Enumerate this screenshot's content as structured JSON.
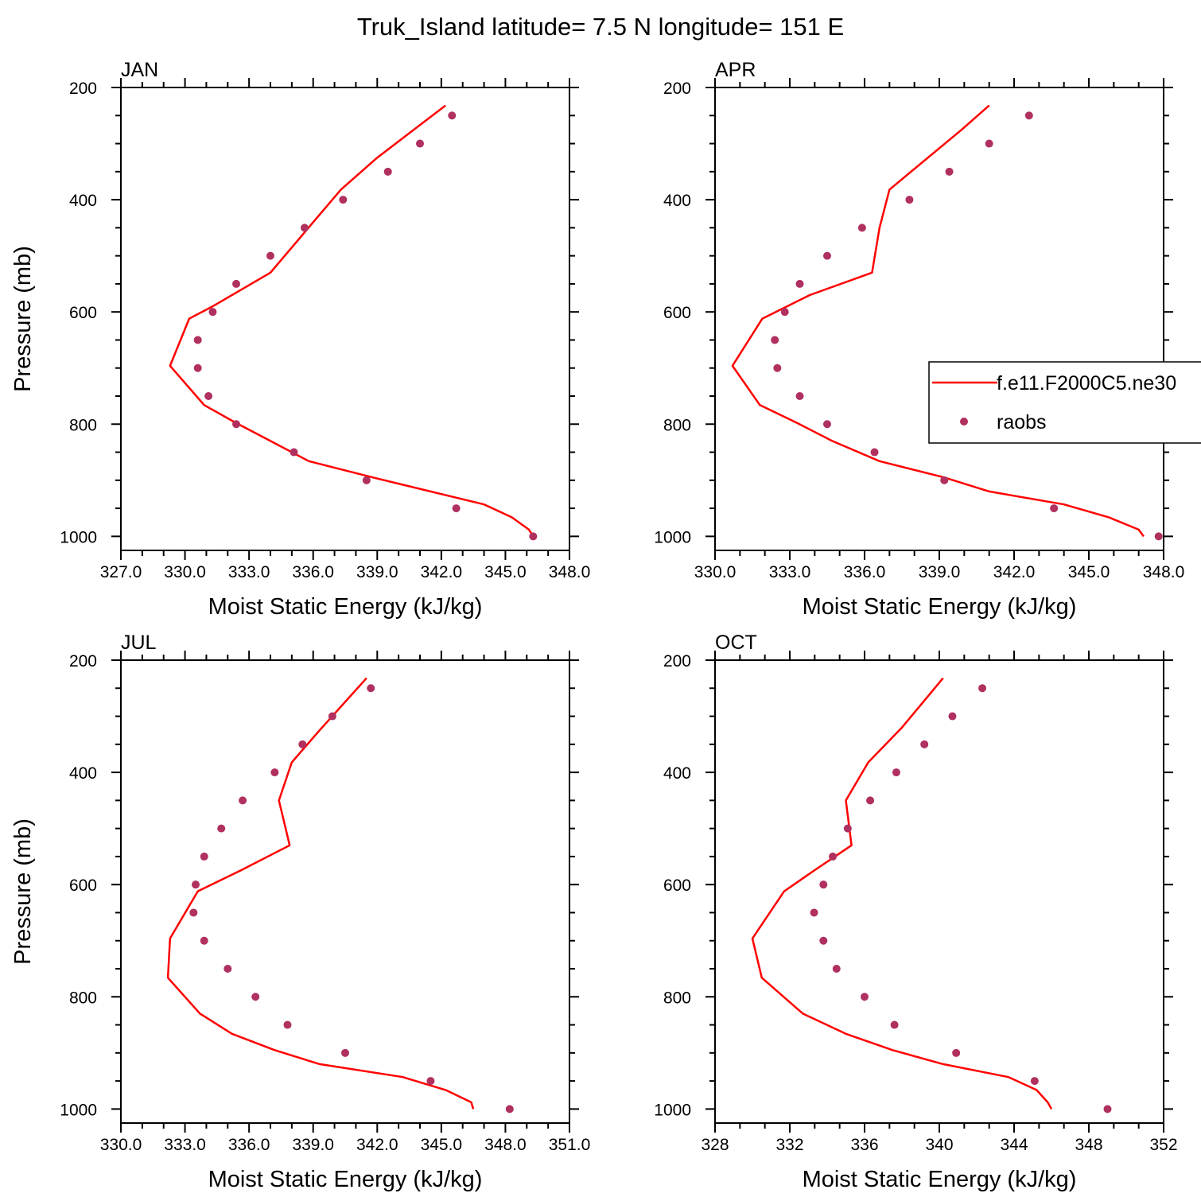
{
  "title": "Truk_Island  latitude= 7.5 N longitude= 151 E",
  "colors": {
    "model_line": "#ff0000",
    "obs_marker": "#b03060",
    "axis": "#000000"
  },
  "legend": {
    "placement": "right, overlapping APR panel",
    "entries": [
      {
        "label": "f.e11.F2000C5.ne30",
        "style": "line"
      },
      {
        "label": "raobs",
        "style": "marker"
      }
    ]
  },
  "chart_data": [
    {
      "type": "line",
      "panel_title": "JAN",
      "xlabel": "Moist Static Energy (kJ/kg)",
      "ylabel": "Pressure (mb)",
      "xlim": [
        327,
        348
      ],
      "ylim": [
        1025,
        200
      ],
      "y_reversed": true,
      "grid": false,
      "xticks": [
        327,
        330,
        333,
        336,
        339,
        342,
        345,
        348
      ],
      "xtick_labels": [
        "327.0",
        "330.0",
        "333.0",
        "336.0",
        "339.0",
        "342.0",
        "345.0",
        "348.0"
      ],
      "yticks": [
        200,
        400,
        600,
        800,
        1000
      ],
      "ytick_labels": [
        "200",
        "400",
        "600",
        "800",
        "1000"
      ],
      "series": [
        {
          "name": "f.e11.F2000C5.ne30",
          "kind": "line",
          "points": [
            [
              342.2,
              232
            ],
            [
              339.0,
              325
            ],
            [
              337.3,
              382
            ],
            [
              334.0,
              530
            ],
            [
              331.3,
              590
            ],
            [
              330.2,
              612
            ],
            [
              329.3,
              696
            ],
            [
              330.9,
              766
            ],
            [
              332.4,
              798
            ],
            [
              334.0,
              830
            ],
            [
              335.8,
              866
            ],
            [
              338.8,
              895
            ],
            [
              344.0,
              943
            ],
            [
              345.3,
              966
            ],
            [
              346.1,
              988
            ],
            [
              346.3,
              1000
            ]
          ]
        },
        {
          "name": "raobs",
          "kind": "scatter",
          "points": [
            [
              342.5,
              250
            ],
            [
              341.0,
              300
            ],
            [
              339.5,
              350
            ],
            [
              337.4,
              400
            ],
            [
              335.6,
              450
            ],
            [
              334.0,
              500
            ],
            [
              332.4,
              550
            ],
            [
              331.3,
              600
            ],
            [
              330.6,
              650
            ],
            [
              330.6,
              700
            ],
            [
              331.1,
              750
            ],
            [
              332.4,
              800
            ],
            [
              335.1,
              850
            ],
            [
              338.5,
              900
            ],
            [
              342.7,
              950
            ],
            [
              346.3,
              1000
            ]
          ]
        }
      ]
    },
    {
      "type": "line",
      "panel_title": "APR",
      "xlabel": "Moist Static Energy (kJ/kg)",
      "ylabel": "",
      "xlim": [
        330,
        348
      ],
      "ylim": [
        1025,
        200
      ],
      "y_reversed": true,
      "grid": false,
      "xticks": [
        330,
        333,
        336,
        339,
        342,
        345,
        348
      ],
      "xtick_labels": [
        "330.0",
        "333.0",
        "336.0",
        "339.0",
        "342.0",
        "345.0",
        "348.0"
      ],
      "yticks": [
        200,
        400,
        600,
        800,
        1000
      ],
      "ytick_labels": [
        "200",
        "400",
        "600",
        "800",
        "1000"
      ],
      "series": [
        {
          "name": "f.e11.F2000C5.ne30",
          "kind": "line",
          "points": [
            [
              341.0,
              232
            ],
            [
              339.9,
              275
            ],
            [
              337.0,
              382
            ],
            [
              336.6,
              450
            ],
            [
              336.3,
              530
            ],
            [
              333.8,
              570
            ],
            [
              331.9,
              612
            ],
            [
              330.7,
              696
            ],
            [
              331.8,
              766
            ],
            [
              333.3,
              798
            ],
            [
              334.7,
              830
            ],
            [
              336.6,
              866
            ],
            [
              339.2,
              895
            ],
            [
              341.0,
              920
            ],
            [
              344.0,
              943
            ],
            [
              345.8,
              966
            ],
            [
              347.0,
              988
            ],
            [
              347.2,
              1000
            ]
          ]
        },
        {
          "name": "raobs",
          "kind": "scatter",
          "points": [
            [
              342.6,
              250
            ],
            [
              341.0,
              300
            ],
            [
              339.4,
              350
            ],
            [
              337.8,
              400
            ],
            [
              335.9,
              450
            ],
            [
              334.5,
              500
            ],
            [
              333.4,
              550
            ],
            [
              332.8,
              600
            ],
            [
              332.4,
              650
            ],
            [
              332.5,
              700
            ],
            [
              333.4,
              750
            ],
            [
              334.5,
              800
            ],
            [
              336.4,
              850
            ],
            [
              339.2,
              900
            ],
            [
              343.6,
              950
            ],
            [
              347.8,
              1000
            ]
          ]
        }
      ]
    },
    {
      "type": "line",
      "panel_title": "JUL",
      "xlabel": "Moist Static Energy (kJ/kg)",
      "ylabel": "Pressure (mb)",
      "xlim": [
        330,
        351
      ],
      "ylim": [
        1025,
        200
      ],
      "y_reversed": true,
      "grid": false,
      "xticks": [
        330,
        333,
        336,
        339,
        342,
        345,
        348,
        351
      ],
      "xtick_labels": [
        "330.0",
        "333.0",
        "336.0",
        "339.0",
        "342.0",
        "345.0",
        "348.0",
        "351.0"
      ],
      "yticks": [
        200,
        400,
        600,
        800,
        1000
      ],
      "ytick_labels": [
        "200",
        "400",
        "600",
        "800",
        "1000"
      ],
      "series": [
        {
          "name": "f.e11.F2000C5.ne30",
          "kind": "line",
          "points": [
            [
              341.5,
              232
            ],
            [
              339.3,
              325
            ],
            [
              338.0,
              382
            ],
            [
              337.4,
              450
            ],
            [
              337.9,
              530
            ],
            [
              335.6,
              575
            ],
            [
              333.6,
              612
            ],
            [
              332.3,
              696
            ],
            [
              332.2,
              766
            ],
            [
              333.7,
              830
            ],
            [
              335.2,
              866
            ],
            [
              337.2,
              895
            ],
            [
              339.3,
              920
            ],
            [
              343.2,
              943
            ],
            [
              345.2,
              966
            ],
            [
              346.4,
              988
            ],
            [
              346.5,
              1000
            ]
          ]
        },
        {
          "name": "raobs",
          "kind": "scatter",
          "points": [
            [
              341.7,
              250
            ],
            [
              339.9,
              300
            ],
            [
              338.5,
              350
            ],
            [
              337.2,
              400
            ],
            [
              335.7,
              450
            ],
            [
              334.7,
              500
            ],
            [
              333.9,
              550
            ],
            [
              333.5,
              600
            ],
            [
              333.4,
              650
            ],
            [
              333.9,
              700
            ],
            [
              335.0,
              750
            ],
            [
              336.3,
              800
            ],
            [
              337.8,
              850
            ],
            [
              340.5,
              900
            ],
            [
              344.5,
              950
            ],
            [
              348.2,
              1000
            ]
          ]
        }
      ]
    },
    {
      "type": "line",
      "panel_title": "OCT",
      "xlabel": "Moist Static Energy (kJ/kg)",
      "ylabel": "",
      "xlim": [
        328,
        352
      ],
      "ylim": [
        1025,
        200
      ],
      "y_reversed": true,
      "grid": false,
      "xticks": [
        328,
        332,
        336,
        340,
        344,
        348,
        352
      ],
      "xtick_labels": [
        "328",
        "332",
        "336",
        "340",
        "344",
        "348",
        "352"
      ],
      "yticks": [
        200,
        400,
        600,
        800,
        1000
      ],
      "ytick_labels": [
        "200",
        "400",
        "600",
        "800",
        "1000"
      ],
      "series": [
        {
          "name": "f.e11.F2000C5.ne30",
          "kind": "line",
          "points": [
            [
              340.2,
              232
            ],
            [
              338.0,
              320
            ],
            [
              336.2,
              382
            ],
            [
              335.0,
              450
            ],
            [
              335.3,
              530
            ],
            [
              333.3,
              575
            ],
            [
              331.7,
              612
            ],
            [
              330.0,
              696
            ],
            [
              330.5,
              766
            ],
            [
              332.7,
              830
            ],
            [
              335.0,
              866
            ],
            [
              337.5,
              895
            ],
            [
              340.2,
              920
            ],
            [
              343.7,
              943
            ],
            [
              345.2,
              966
            ],
            [
              345.8,
              988
            ],
            [
              346.0,
              1000
            ]
          ]
        },
        {
          "name": "raobs",
          "kind": "scatter",
          "points": [
            [
              342.3,
              250
            ],
            [
              340.7,
              300
            ],
            [
              339.2,
              350
            ],
            [
              337.7,
              400
            ],
            [
              336.3,
              450
            ],
            [
              335.1,
              500
            ],
            [
              334.3,
              550
            ],
            [
              333.8,
              600
            ],
            [
              333.3,
              650
            ],
            [
              333.8,
              700
            ],
            [
              334.5,
              750
            ],
            [
              336.0,
              800
            ],
            [
              337.6,
              850
            ],
            [
              340.9,
              900
            ],
            [
              345.1,
              950
            ],
            [
              349.0,
              1000
            ]
          ]
        }
      ]
    }
  ]
}
